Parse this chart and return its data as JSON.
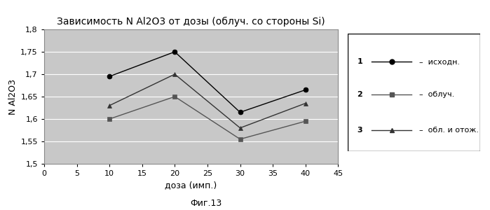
{
  "title": "Зависимость N Al2O3 от дозы (облуч. со стороны Si)",
  "xlabel": "доза (имп.)",
  "ylabel": "N Al2O3",
  "caption": "Фиг.13",
  "xlim": [
    0,
    45
  ],
  "ylim": [
    1.5,
    1.8
  ],
  "yticks": [
    1.5,
    1.55,
    1.6,
    1.65,
    1.7,
    1.75,
    1.8
  ],
  "xticks": [
    0,
    5,
    10,
    15,
    20,
    25,
    30,
    35,
    40,
    45
  ],
  "series": [
    {
      "label": "1",
      "legend_label": "исходн.",
      "x": [
        10,
        20,
        30,
        40
      ],
      "y": [
        1.695,
        1.75,
        1.615,
        1.665
      ],
      "color": "#000000",
      "marker": "o",
      "markersize": 5,
      "linestyle": "-"
    },
    {
      "label": "2",
      "legend_label": "облуч.",
      "x": [
        10,
        20,
        30,
        40
      ],
      "y": [
        1.6,
        1.65,
        1.555,
        1.595
      ],
      "color": "#555555",
      "marker": "s",
      "markersize": 5,
      "linestyle": "-"
    },
    {
      "label": "3",
      "legend_label": "обл. и отож.",
      "x": [
        10,
        20,
        30,
        40
      ],
      "y": [
        1.63,
        1.7,
        1.58,
        1.635
      ],
      "color": "#333333",
      "marker": "^",
      "markersize": 5,
      "linestyle": "-"
    }
  ],
  "plot_bg_color": "#c8c8c8",
  "fig_bg_color": "#ffffff",
  "grid_color": "#ffffff",
  "legend_box_color": "#ffffff",
  "legend_box_edge": "#000000"
}
